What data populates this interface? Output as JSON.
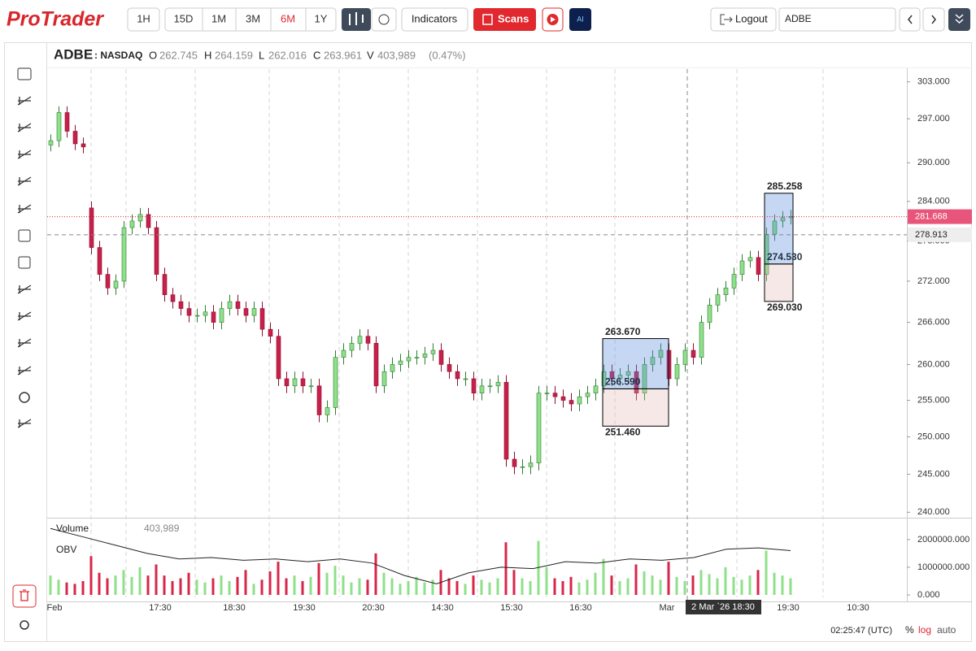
{
  "header": {
    "logo": "ProTrader",
    "ranges": [
      "1H",
      "15D",
      "1M",
      "3M",
      "6M",
      "1Y"
    ],
    "active_range": "6M",
    "indicators": "Indicators",
    "scans": "Scans",
    "ai": "AI",
    "logout": "Logout",
    "symbol_input": "ADBE"
  },
  "legend": {
    "symbol": "ADBE",
    "exchange": ": NASDAQ",
    "open_label": "O",
    "open": 262.745,
    "high_label": "H",
    "high": 264.159,
    "low_label": "L",
    "low": 262.016,
    "close_label": "C",
    "close": 263.961,
    "volume_label": "V",
    "volume": "403,989",
    "change": "(0.47%)"
  },
  "chart_data": {
    "type": "candlestick",
    "log_scale": true,
    "up_color": "#8fe08a",
    "down_color": "#c8204a",
    "open": [
      292.8,
      293.5,
      298,
      295,
      293,
      283,
      277,
      273,
      271,
      272,
      280,
      281,
      282,
      280,
      273,
      270,
      269,
      268,
      267,
      267,
      267.5,
      266,
      268,
      269,
      268,
      267,
      268,
      265,
      264,
      258,
      257,
      258,
      257,
      257,
      253,
      254,
      261,
      262,
      263,
      264,
      263,
      257,
      259,
      260,
      260.5,
      261,
      261,
      261.5,
      262,
      260,
      259,
      258,
      258,
      256,
      257,
      257,
      257.5,
      247,
      246,
      246,
      246.5,
      256,
      256,
      255.5,
      255,
      254.5,
      255.5,
      256,
      257,
      259,
      258,
      258.5,
      259,
      256,
      260,
      261,
      262,
      258,
      260,
      262,
      261,
      266,
      268.5,
      270,
      271,
      273,
      275,
      275.5,
      273,
      279,
      281,
      281.5
    ],
    "high": [
      294.5,
      299,
      299,
      296,
      294,
      284,
      278,
      274,
      273,
      281,
      282,
      283,
      283,
      281,
      274,
      271,
      270,
      269,
      268,
      268.5,
      268.5,
      269,
      270,
      270,
      269,
      269,
      269,
      266,
      265,
      259,
      259,
      259,
      258,
      258,
      255,
      262,
      263,
      264,
      265,
      265,
      264,
      260,
      261,
      261.5,
      262,
      262,
      262.5,
      263,
      263,
      261,
      260,
      259,
      259,
      258,
      258,
      258.5,
      258.5,
      248,
      247,
      247.5,
      257,
      257,
      257,
      256.5,
      256,
      256.5,
      257,
      258,
      260,
      260,
      259.5,
      260,
      260,
      261,
      262,
      263,
      263,
      261,
      263,
      263,
      267,
      269.5,
      271,
      272,
      274,
      276,
      276.5,
      276.5,
      280,
      282,
      282.5,
      282.7
    ],
    "low": [
      291.8,
      292.5,
      294,
      292,
      291.5,
      276,
      272,
      270,
      270,
      271,
      279,
      280,
      279,
      272,
      269,
      268,
      267,
      266,
      266,
      266,
      265,
      265,
      267,
      267,
      266,
      266,
      264,
      263,
      257,
      256,
      256,
      256,
      256,
      252,
      252,
      253,
      260,
      261,
      262,
      262,
      256,
      256,
      258,
      259,
      259.5,
      260,
      260,
      260.5,
      259,
      258,
      257,
      257,
      255,
      255,
      256,
      256,
      246,
      245,
      245,
      245,
      245.5,
      255,
      254.5,
      254,
      253.5,
      253.5,
      254.5,
      255,
      256,
      257,
      257,
      257.5,
      255,
      255,
      259,
      260,
      257,
      257,
      259,
      260,
      260,
      265,
      267.5,
      269,
      270,
      272,
      274,
      272,
      272,
      278,
      280,
      280.5
    ],
    "close": [
      293.5,
      298,
      295,
      293,
      292.5,
      277,
      273,
      271,
      272,
      280,
      281,
      282,
      280,
      273,
      270,
      269,
      268,
      267,
      267,
      267.5,
      266,
      268,
      269,
      268,
      267,
      268,
      265,
      264,
      258,
      257,
      258,
      257,
      257,
      253,
      254,
      261,
      262,
      263,
      264,
      263,
      257,
      259,
      260,
      260.5,
      261,
      261,
      261.5,
      262,
      260,
      259,
      258,
      258,
      256,
      257,
      257,
      257.5,
      247,
      246,
      246,
      246.5,
      256,
      256,
      255.5,
      255,
      254.5,
      255.5,
      256,
      257,
      259,
      258,
      258.5,
      259,
      256,
      260,
      261,
      262,
      258,
      260,
      262,
      261,
      266,
      268.5,
      270,
      271,
      273,
      275,
      275.5,
      273,
      279,
      281,
      281.5,
      281.7
    ],
    "ylim": [
      239.4,
      305.1
    ],
    "yticks": [
      {
        "value": 303,
        "label": "303.000"
      },
      {
        "value": 297,
        "label": "297.000"
      },
      {
        "value": 290,
        "label": "290.000"
      },
      {
        "value": 284,
        "label": "284.000"
      },
      {
        "value": 278,
        "label": "278.000"
      },
      {
        "value": 272,
        "label": "272.000"
      },
      {
        "value": 266,
        "label": "266.000"
      },
      {
        "value": 260,
        "label": "260.000"
      },
      {
        "value": 255,
        "label": "255.000"
      },
      {
        "value": 250,
        "label": "250.000"
      },
      {
        "value": 245,
        "label": "245.000"
      },
      {
        "value": 240,
        "label": "240.000"
      }
    ],
    "x_labels": [
      "Feb",
      "17:30",
      "18:30",
      "19:30",
      "20:30",
      "14:30",
      "15:30",
      "16:30",
      "Mar",
      "19:30",
      "10:30"
    ],
    "crosshair_label": "2 Mar `26 18:30",
    "last_price": 281.668,
    "crosshair_price": 278.913,
    "positions": [
      {
        "top": {
          "value": 263.67,
          "label": "263.670"
        },
        "entry": {
          "value": 256.59,
          "label": "256.590"
        },
        "bottom": {
          "value": 251.46,
          "label": "251.460"
        }
      },
      {
        "top": {
          "value": 285.258,
          "label": "285.258"
        },
        "entry": {
          "value": 274.53,
          "label": "274.530"
        },
        "bottom": {
          "value": 269.03,
          "label": "269.030"
        }
      }
    ],
    "volume": {
      "name": "Volume",
      "last": "403,989",
      "ylim": [
        0,
        2700000
      ],
      "yticks": [
        {
          "value": 0,
          "label": "0.000"
        },
        {
          "value": 1000000,
          "label": "1000000.000"
        },
        {
          "value": 2000000,
          "label": "2000000.000"
        }
      ],
      "values": [
        700000,
        550000,
        450000,
        400000,
        500000,
        1400000,
        800000,
        600000,
        700000,
        900000,
        650000,
        1000000,
        700000,
        1100000,
        700000,
        500000,
        600000,
        800000,
        550000,
        450000,
        600000,
        700000,
        500000,
        650000,
        900000,
        400000,
        550000,
        850000,
        1200000,
        600000,
        700000,
        500000,
        650000,
        1150000,
        800000,
        1050000,
        700000,
        450000,
        600000,
        550000,
        1500000,
        800000,
        600000,
        400000,
        500000,
        650000,
        450000,
        550000,
        900000,
        600000,
        500000,
        400000,
        700000,
        550000,
        450000,
        600000,
        1900000,
        900000,
        600000,
        500000,
        1950000,
        1000000,
        600000,
        500000,
        650000,
        450000,
        550000,
        800000,
        1300000,
        700000,
        500000,
        600000,
        1100000,
        850000,
        700000,
        550000,
        1200000,
        650000,
        500000,
        700000,
        900000,
        750000,
        600000,
        1000000,
        650000,
        550000,
        700000,
        900000,
        1600000,
        800000,
        700000,
        600000
      ]
    },
    "obv": {
      "name": "OBV",
      "values": [
        2400000,
        2100000,
        1800000,
        1500000,
        1300000,
        1350000,
        1250000,
        1300000,
        1200000,
        1300000,
        1150000,
        700000,
        400000,
        800000,
        1000000,
        950000,
        1200000,
        1150000,
        1300000,
        1250000,
        1350000,
        1650000,
        1700000,
        1600000
      ]
    }
  },
  "footer": {
    "clock": "02:25:47 (UTC)",
    "percent": "%",
    "log": "log",
    "auto": "auto"
  }
}
